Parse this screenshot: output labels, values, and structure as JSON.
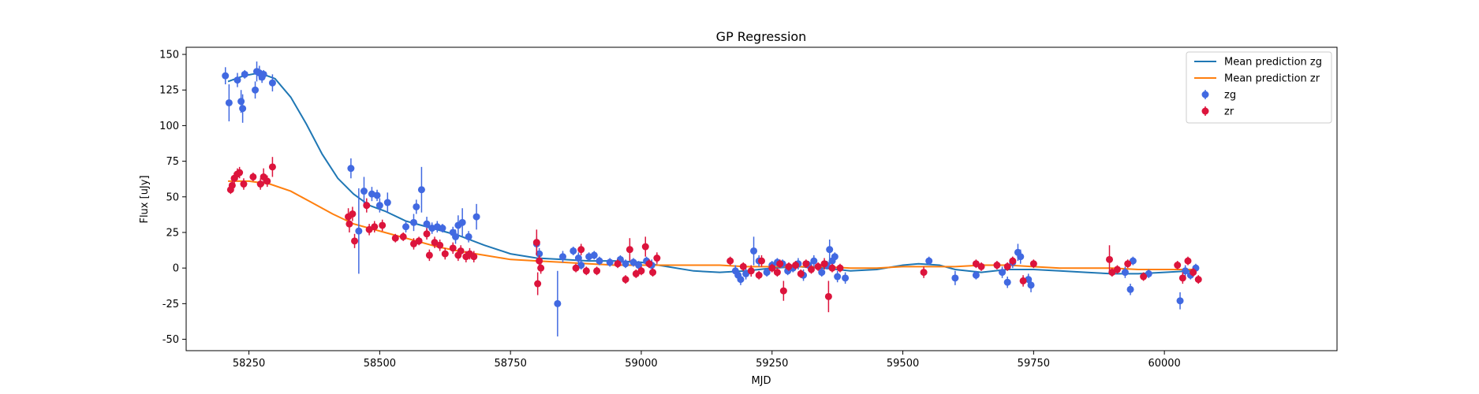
{
  "chart_data": {
    "type": "scatter",
    "title": "GP Regression",
    "xlabel": "MJD",
    "ylabel": "Flux [uJy]",
    "xlim": [
      58130,
      60330
    ],
    "ylim": [
      -58,
      155
    ],
    "xticks": [
      58250,
      58500,
      58750,
      59000,
      59250,
      59500,
      59750,
      60000
    ],
    "yticks": [
      -50,
      -25,
      0,
      25,
      50,
      75,
      100,
      125,
      150
    ],
    "grid": false,
    "legend_position": "top-right",
    "legend": [
      "Mean prediction zg",
      "Mean prediction zr",
      "zg",
      "zr"
    ],
    "series": [
      {
        "name": "Mean prediction zg",
        "kind": "line",
        "color": "#1f77b4",
        "x": [
          58210,
          58240,
          58270,
          58300,
          58330,
          58360,
          58390,
          58420,
          58450,
          58480,
          58510,
          58550,
          58600,
          58650,
          58700,
          58750,
          58800,
          58850,
          58900,
          58950,
          59000,
          59050,
          59100,
          59150,
          59200,
          59250,
          59300,
          59350,
          59400,
          59450,
          59500,
          59530,
          59570,
          59600,
          59650,
          59700,
          59750,
          59800,
          59850,
          59900,
          59950,
          60000,
          60050,
          60060
        ],
        "y": [
          131,
          135,
          137,
          133,
          120,
          101,
          80,
          63,
          52,
          44,
          40,
          33,
          28,
          23,
          16,
          10,
          7,
          6,
          5,
          5,
          4,
          1,
          -2,
          -3,
          -2,
          0,
          1,
          0,
          -2,
          -1,
          2,
          3,
          2,
          -1,
          -3,
          -1,
          -1,
          -2,
          -3,
          -4,
          -4,
          -3,
          -2,
          -2
        ]
      },
      {
        "name": "Mean prediction zr",
        "kind": "line",
        "color": "#ff7f0e",
        "x": [
          58210,
          58250,
          58290,
          58330,
          58370,
          58410,
          58450,
          58490,
          58530,
          58570,
          58610,
          58650,
          58700,
          58750,
          58800,
          58850,
          58900,
          58950,
          59000,
          59050,
          59100,
          59150,
          59200,
          59250,
          59300,
          59350,
          59400,
          59450,
          59500,
          59550,
          59600,
          59650,
          59700,
          59750,
          59800,
          59850,
          59900,
          59950,
          60000,
          60060
        ],
        "y": [
          61,
          61,
          59,
          54,
          46,
          38,
          31,
          27,
          23,
          19,
          15,
          12,
          9,
          6,
          5,
          4,
          3,
          2,
          2,
          2,
          2,
          2,
          1,
          1,
          1,
          1,
          0,
          0,
          1,
          1,
          1,
          2,
          2,
          1,
          0,
          0,
          0,
          -1,
          -1,
          -1
        ]
      },
      {
        "name": "zg",
        "kind": "errorbar",
        "color": "#4169e1",
        "points": [
          [
            58205,
            135,
            6
          ],
          [
            58212,
            116,
            13
          ],
          [
            58228,
            132,
            5
          ],
          [
            58235,
            117,
            8
          ],
          [
            58238,
            112,
            10
          ],
          [
            58242,
            136,
            3
          ],
          [
            58262,
            125,
            6
          ],
          [
            58265,
            138,
            7
          ],
          [
            58270,
            137,
            5
          ],
          [
            58275,
            134,
            4
          ],
          [
            58278,
            136,
            3
          ],
          [
            58295,
            130,
            6
          ],
          [
            58445,
            70,
            7
          ],
          [
            58460,
            26,
            30
          ],
          [
            58470,
            54,
            10
          ],
          [
            58485,
            52,
            5
          ],
          [
            58495,
            51,
            4
          ],
          [
            58500,
            44,
            5
          ],
          [
            58515,
            46,
            7
          ],
          [
            58550,
            29,
            4
          ],
          [
            58565,
            32,
            6
          ],
          [
            58570,
            43,
            5
          ],
          [
            58580,
            55,
            16
          ],
          [
            58590,
            31,
            5
          ],
          [
            58600,
            28,
            4
          ],
          [
            58610,
            29,
            4
          ],
          [
            58620,
            28,
            3
          ],
          [
            58640,
            25,
            4
          ],
          [
            58645,
            22,
            5
          ],
          [
            58650,
            30,
            7
          ],
          [
            58658,
            32,
            10
          ],
          [
            58670,
            22,
            4
          ],
          [
            58685,
            36,
            9
          ],
          [
            58800,
            17,
            5
          ],
          [
            58805,
            10,
            4
          ],
          [
            58840,
            -25,
            23
          ],
          [
            58850,
            8,
            4
          ],
          [
            58870,
            12,
            3
          ],
          [
            58880,
            7,
            4
          ],
          [
            58885,
            2,
            3
          ],
          [
            58900,
            8,
            3
          ],
          [
            58910,
            9,
            3
          ],
          [
            58920,
            5,
            3
          ],
          [
            58940,
            4,
            3
          ],
          [
            58960,
            6,
            3
          ],
          [
            58970,
            3,
            3
          ],
          [
            58985,
            4,
            3
          ],
          [
            58995,
            2,
            3
          ],
          [
            59010,
            5,
            3
          ],
          [
            59020,
            2,
            4
          ],
          [
            59180,
            -2,
            4
          ],
          [
            59185,
            -5,
            4
          ],
          [
            59190,
            -8,
            4
          ],
          [
            59200,
            -4,
            4
          ],
          [
            59215,
            12,
            10
          ],
          [
            59225,
            5,
            4
          ],
          [
            59240,
            -3,
            3
          ],
          [
            59250,
            2,
            3
          ],
          [
            59260,
            4,
            3
          ],
          [
            59270,
            3,
            3
          ],
          [
            59280,
            -2,
            3
          ],
          [
            59290,
            0,
            3
          ],
          [
            59300,
            3,
            4
          ],
          [
            59310,
            -5,
            4
          ],
          [
            59320,
            2,
            3
          ],
          [
            59330,
            5,
            4
          ],
          [
            59345,
            -3,
            3
          ],
          [
            59355,
            2,
            3
          ],
          [
            59360,
            13,
            7
          ],
          [
            59365,
            5,
            4
          ],
          [
            59370,
            8,
            3
          ],
          [
            59375,
            -6,
            4
          ],
          [
            59390,
            -7,
            4
          ],
          [
            59550,
            5,
            3
          ],
          [
            59600,
            -7,
            5
          ],
          [
            59640,
            -5,
            3
          ],
          [
            59690,
            -3,
            4
          ],
          [
            59700,
            -10,
            4
          ],
          [
            59710,
            4,
            4
          ],
          [
            59720,
            11,
            6
          ],
          [
            59725,
            8,
            5
          ],
          [
            59740,
            -8,
            4
          ],
          [
            59745,
            -12,
            5
          ],
          [
            59925,
            -3,
            4
          ],
          [
            59935,
            -15,
            4
          ],
          [
            59940,
            5,
            3
          ],
          [
            59970,
            -4,
            3
          ],
          [
            60030,
            -23,
            6
          ],
          [
            60040,
            -2,
            4
          ],
          [
            60050,
            -5,
            3
          ],
          [
            60060,
            0,
            3
          ]
        ]
      },
      {
        "name": "zr",
        "kind": "errorbar",
        "color": "#dc143c",
        "points": [
          [
            58215,
            55,
            3
          ],
          [
            58218,
            58,
            3
          ],
          [
            58222,
            63,
            4
          ],
          [
            58228,
            66,
            4
          ],
          [
            58232,
            67,
            4
          ],
          [
            58240,
            59,
            4
          ],
          [
            58258,
            64,
            3
          ],
          [
            58272,
            59,
            4
          ],
          [
            58278,
            64,
            6
          ],
          [
            58285,
            61,
            4
          ],
          [
            58295,
            71,
            7
          ],
          [
            58440,
            36,
            6
          ],
          [
            58442,
            31,
            6
          ],
          [
            58448,
            38,
            5
          ],
          [
            58452,
            19,
            5
          ],
          [
            58475,
            44,
            5
          ],
          [
            58480,
            27,
            4
          ],
          [
            58490,
            29,
            4
          ],
          [
            58505,
            30,
            4
          ],
          [
            58530,
            21,
            3
          ],
          [
            58545,
            22,
            3
          ],
          [
            58565,
            17,
            4
          ],
          [
            58575,
            19,
            3
          ],
          [
            58590,
            24,
            4
          ],
          [
            58595,
            9,
            4
          ],
          [
            58605,
            18,
            4
          ],
          [
            58615,
            16,
            4
          ],
          [
            58625,
            10,
            4
          ],
          [
            58640,
            14,
            4
          ],
          [
            58650,
            9,
            4
          ],
          [
            58655,
            12,
            4
          ],
          [
            58665,
            8,
            4
          ],
          [
            58672,
            10,
            4
          ],
          [
            58680,
            8,
            4
          ],
          [
            58800,
            18,
            9
          ],
          [
            58802,
            -11,
            8
          ],
          [
            58805,
            5,
            4
          ],
          [
            58808,
            0,
            4
          ],
          [
            58875,
            0,
            3
          ],
          [
            58885,
            13,
            4
          ],
          [
            58895,
            -2,
            3
          ],
          [
            58915,
            -2,
            3
          ],
          [
            58955,
            3,
            3
          ],
          [
            58970,
            -8,
            3
          ],
          [
            58978,
            13,
            8
          ],
          [
            58990,
            -4,
            3
          ],
          [
            59000,
            -2,
            3
          ],
          [
            59008,
            15,
            7
          ],
          [
            59015,
            3,
            3
          ],
          [
            59022,
            -3,
            3
          ],
          [
            59030,
            7,
            4
          ],
          [
            59170,
            5,
            3
          ],
          [
            59195,
            1,
            3
          ],
          [
            59210,
            -2,
            4
          ],
          [
            59225,
            -5,
            3
          ],
          [
            59230,
            5,
            4
          ],
          [
            59250,
            0,
            3
          ],
          [
            59260,
            -3,
            3
          ],
          [
            59265,
            3,
            3
          ],
          [
            59272,
            -16,
            7
          ],
          [
            59282,
            1,
            3
          ],
          [
            59295,
            2,
            3
          ],
          [
            59305,
            -4,
            3
          ],
          [
            59315,
            3,
            3
          ],
          [
            59325,
            -1,
            3
          ],
          [
            59338,
            1,
            3
          ],
          [
            59350,
            3,
            4
          ],
          [
            59358,
            -20,
            11
          ],
          [
            59365,
            0,
            3
          ],
          [
            59380,
            0,
            3
          ],
          [
            59540,
            -3,
            4
          ],
          [
            59640,
            3,
            3
          ],
          [
            59650,
            1,
            3
          ],
          [
            59680,
            2,
            3
          ],
          [
            59700,
            1,
            3
          ],
          [
            59710,
            5,
            3
          ],
          [
            59730,
            -9,
            4
          ],
          [
            59750,
            3,
            3
          ],
          [
            59895,
            6,
            10
          ],
          [
            59900,
            -3,
            3
          ],
          [
            59910,
            -1,
            3
          ],
          [
            59930,
            3,
            3
          ],
          [
            59960,
            -6,
            3
          ],
          [
            60025,
            2,
            3
          ],
          [
            60035,
            -7,
            4
          ],
          [
            60045,
            5,
            3
          ],
          [
            60055,
            -3,
            3
          ],
          [
            60065,
            -8,
            3
          ]
        ]
      }
    ]
  }
}
